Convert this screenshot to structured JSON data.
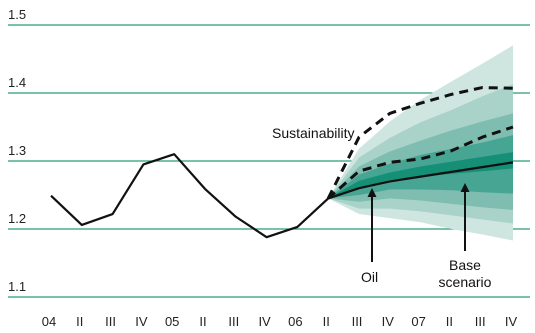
{
  "chart_data": {
    "type": "line",
    "title": "",
    "xlabel": "",
    "ylabel": "",
    "ylim": [
      1.1,
      1.5
    ],
    "yticks": [
      "1.1",
      "1.2",
      "1.3",
      "1.4",
      "1.5"
    ],
    "categories": [
      "04",
      "II",
      "III",
      "IV",
      "05",
      "II",
      "III",
      "IV",
      "06",
      "II",
      "III",
      "IV",
      "07",
      "II",
      "III",
      "IV"
    ],
    "grid": true,
    "series": [
      {
        "values": [
          1.249,
          1.206,
          1.222,
          1.295,
          1.31,
          1.259,
          1.218,
          1.188,
          1.203,
          1.245,
          1.26,
          1.27,
          1.277,
          1.284,
          1.291,
          1.298
        ],
        "style": "solid"
      },
      {
        "values": [
          null,
          null,
          null,
          null,
          null,
          null,
          null,
          null,
          null,
          1.245,
          1.285,
          1.298,
          1.303,
          1.315,
          1.335,
          1.35
        ],
        "style": "dashed"
      },
      {
        "values": [
          null,
          null,
          null,
          null,
          null,
          null,
          null,
          null,
          null,
          1.245,
          1.335,
          1.37,
          1.385,
          1.398,
          1.408,
          1.407
        ],
        "style": "dashed"
      }
    ],
    "fan_chart": {
      "x_start": "II",
      "bands": [
        {
          "lower": [
            1.245,
            1.222,
            1.216,
            1.21,
            1.2,
            1.192,
            1.183
          ],
          "upper": [
            1.245,
            1.318,
            1.358,
            1.39,
            1.417,
            1.443,
            1.47
          ]
        },
        {
          "lower": [
            1.245,
            1.23,
            1.23,
            1.226,
            1.22,
            1.214,
            1.208
          ],
          "upper": [
            1.245,
            1.305,
            1.334,
            1.357,
            1.375,
            1.395,
            1.413
          ]
        },
        {
          "lower": [
            1.245,
            1.24,
            1.245,
            1.242,
            1.237,
            1.232,
            1.228
          ],
          "upper": [
            1.245,
            1.292,
            1.314,
            1.33,
            1.345,
            1.358,
            1.37
          ]
        },
        {
          "lower": [
            1.245,
            1.25,
            1.258,
            1.258,
            1.257,
            1.254,
            1.252
          ],
          "upper": [
            1.245,
            1.28,
            1.296,
            1.309,
            1.318,
            1.327,
            1.338
          ]
        },
        {
          "lower": [
            1.245,
            1.261,
            1.272,
            1.277,
            1.281,
            1.285,
            1.289
          ],
          "upper": [
            1.245,
            1.271,
            1.283,
            1.292,
            1.299,
            1.306,
            1.313
          ]
        }
      ],
      "colors": [
        "#cfe6e0",
        "#a9d3c8",
        "#7fbdb0",
        "#47a594",
        "#159077"
      ]
    },
    "annotations": [
      {
        "text": "Sustainability"
      },
      {
        "text": "Oil"
      },
      {
        "lines": [
          "Base",
          "scenario"
        ]
      }
    ],
    "colors": {
      "gridline": "#2a9c7b",
      "line": "#111111"
    }
  }
}
